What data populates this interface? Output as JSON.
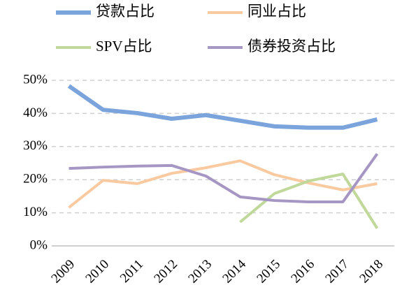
{
  "chart_data": {
    "type": "line",
    "categories": [
      "2009",
      "2010",
      "2011",
      "2012",
      "2013",
      "2014",
      "2015",
      "2016",
      "2017",
      "2018"
    ],
    "series": [
      {
        "name": "贷款占比",
        "color": "#7ba4dc",
        "values": [
          48.3,
          41.1,
          40.1,
          38.4,
          39.5,
          37.8,
          36.1,
          35.7,
          35.7,
          38.2
        ]
      },
      {
        "name": "同业占比",
        "color": "#f9c9a0",
        "values": [
          11.6,
          19.8,
          18.8,
          21.9,
          23.6,
          25.7,
          21.5,
          19.0,
          16.9,
          18.8
        ]
      },
      {
        "name": "SPV占比",
        "color": "#c0d89a",
        "values": [
          null,
          null,
          null,
          null,
          null,
          7.2,
          15.8,
          19.6,
          21.7,
          5.3
        ]
      },
      {
        "name": "债券投资占比",
        "color": "#a596c4",
        "values": [
          23.4,
          23.8,
          24.1,
          24.3,
          21.1,
          14.8,
          13.7,
          13.3,
          13.3,
          27.8
        ]
      }
    ],
    "ylim": [
      0,
      50
    ],
    "yticks": [
      {
        "value": 0,
        "label": "0%"
      },
      {
        "value": 10,
        "label": "10%"
      },
      {
        "value": 20,
        "label": "20%"
      },
      {
        "value": 30,
        "label": "30%"
      },
      {
        "value": 40,
        "label": "40%"
      },
      {
        "value": 50,
        "label": "50%"
      }
    ],
    "grid": true
  }
}
